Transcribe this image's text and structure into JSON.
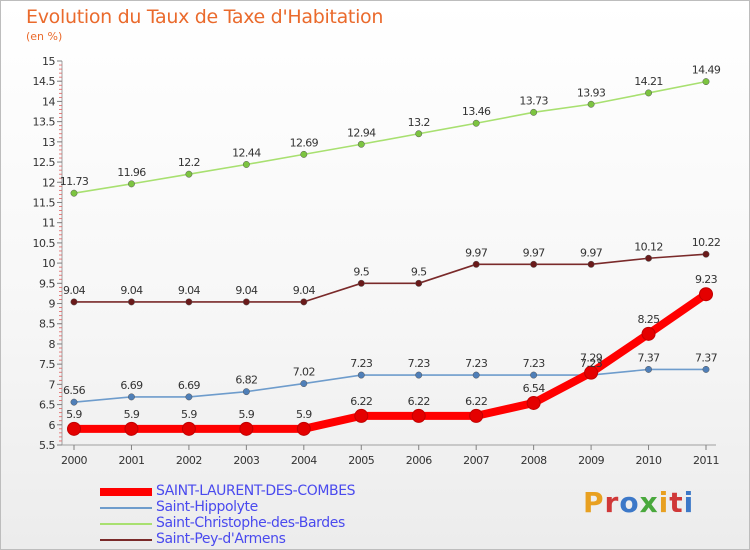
{
  "title": "Evolution du Taux de Taxe d'Habitation",
  "unit": "(en %)",
  "logo": {
    "text": "Proxiti",
    "colors": [
      "#e8a020",
      "#d03838",
      "#3c78c8",
      "#49a83c",
      "#e8a020",
      "#d03838",
      "#3c78c8"
    ]
  },
  "chart_data": {
    "type": "line",
    "x": [
      "2000",
      "2001",
      "2002",
      "2003",
      "2004",
      "2005",
      "2006",
      "2007",
      "2008",
      "2009",
      "2010",
      "2011"
    ],
    "ylim": [
      5.5,
      15
    ],
    "yticks": [
      "5.5",
      "6",
      "6.5",
      "7",
      "7.5",
      "8",
      "8.5",
      "9",
      "9.5",
      "10",
      "10.5",
      "11",
      "11.5",
      "12",
      "12.5",
      "13",
      "13.5",
      "14",
      "14.5",
      "15"
    ],
    "grid": false,
    "legend_position": "bottom-left",
    "series": [
      {
        "name": "SAINT-LAURENT-DES-COMBES",
        "color": "#ff0000",
        "marker": "#e40000",
        "width": 8,
        "values": [
          5.9,
          5.9,
          5.9,
          5.9,
          5.9,
          6.22,
          6.22,
          6.22,
          6.54,
          7.29,
          8.25,
          9.23
        ],
        "labels": [
          "5.9",
          "5.9",
          "5.9",
          "5.9",
          "5.9",
          "6.22",
          "6.22",
          "6.22",
          "6.54",
          "7.29",
          "8.25",
          "9.23"
        ]
      },
      {
        "name": "Saint-Hippolyte",
        "color": "#6e9ccc",
        "marker": "#4f7fb8",
        "width": 1.6,
        "values": [
          6.56,
          6.69,
          6.69,
          6.82,
          7.02,
          7.23,
          7.23,
          7.23,
          7.23,
          7.23,
          7.37,
          7.37
        ],
        "labels": [
          "6.56",
          "6.69",
          "6.69",
          "6.82",
          "7.02",
          "7.23",
          "7.23",
          "7.23",
          "7.23",
          "7.23",
          "7.37",
          "7.37"
        ]
      },
      {
        "name": "Saint-Christophe-des-Bardes",
        "color": "#a8e070",
        "marker": "#7cc440",
        "width": 1.6,
        "values": [
          11.73,
          11.96,
          12.2,
          12.44,
          12.69,
          12.94,
          13.2,
          13.46,
          13.73,
          13.93,
          14.21,
          14.49
        ],
        "labels": [
          "11.73",
          "11.96",
          "12.2",
          "12.44",
          "12.69",
          "12.94",
          "13.2",
          "13.46",
          "13.73",
          "13.93",
          "14.21",
          "14.49"
        ]
      },
      {
        "name": "Saint-Pey-d'Armens",
        "color": "#7a2a2a",
        "marker": "#6a1a1a",
        "width": 1.6,
        "values": [
          9.04,
          9.04,
          9.04,
          9.04,
          9.04,
          9.5,
          9.5,
          9.97,
          9.97,
          9.97,
          10.12,
          10.22
        ],
        "labels": [
          "9.04",
          "9.04",
          "9.04",
          "9.04",
          "9.04",
          "9.5",
          "9.5",
          "9.97",
          "9.97",
          "9.97",
          "10.12",
          "10.22"
        ]
      }
    ]
  }
}
